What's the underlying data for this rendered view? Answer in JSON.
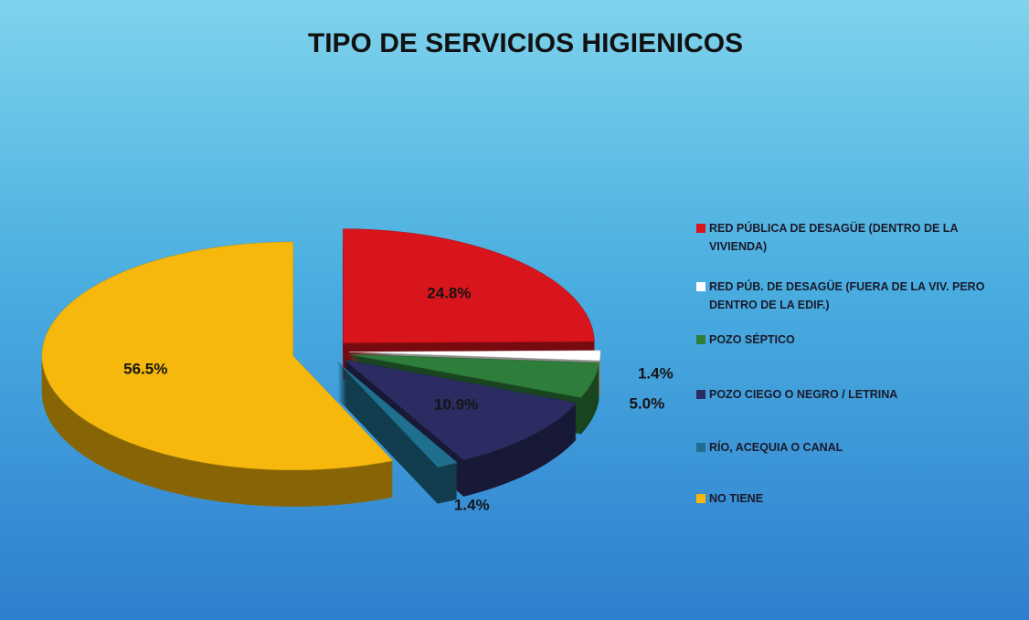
{
  "chart_data": {
    "type": "pie",
    "title": "TIPO DE SERVICIOS HIGIENICOS",
    "categories": [
      "RED PÚBLICA DE DESAGÜE (DENTRO DE LA VIVIENDA)",
      "RED PÚB. DE DESAGÜE (FUERA DE LA VIV. PERO DENTRO DE LA EDIF.)",
      "POZO SÉPTICO",
      "POZO CIEGO O NEGRO / LETRINA",
      "RÍO, ACEQUIA O CANAL",
      "NO TIENE"
    ],
    "values": [
      24.8,
      1.4,
      5.0,
      10.9,
      1.4,
      56.5
    ],
    "value_labels": [
      "24.8%",
      "1.4%",
      "5.0%",
      "10.9%",
      "1.4%",
      "56.5%"
    ],
    "colors": [
      "#d8141c",
      "#ffffff",
      "#2e7d3a",
      "#2b2d62",
      "#1f6f8e",
      "#f6b80c"
    ],
    "legend": "right"
  }
}
